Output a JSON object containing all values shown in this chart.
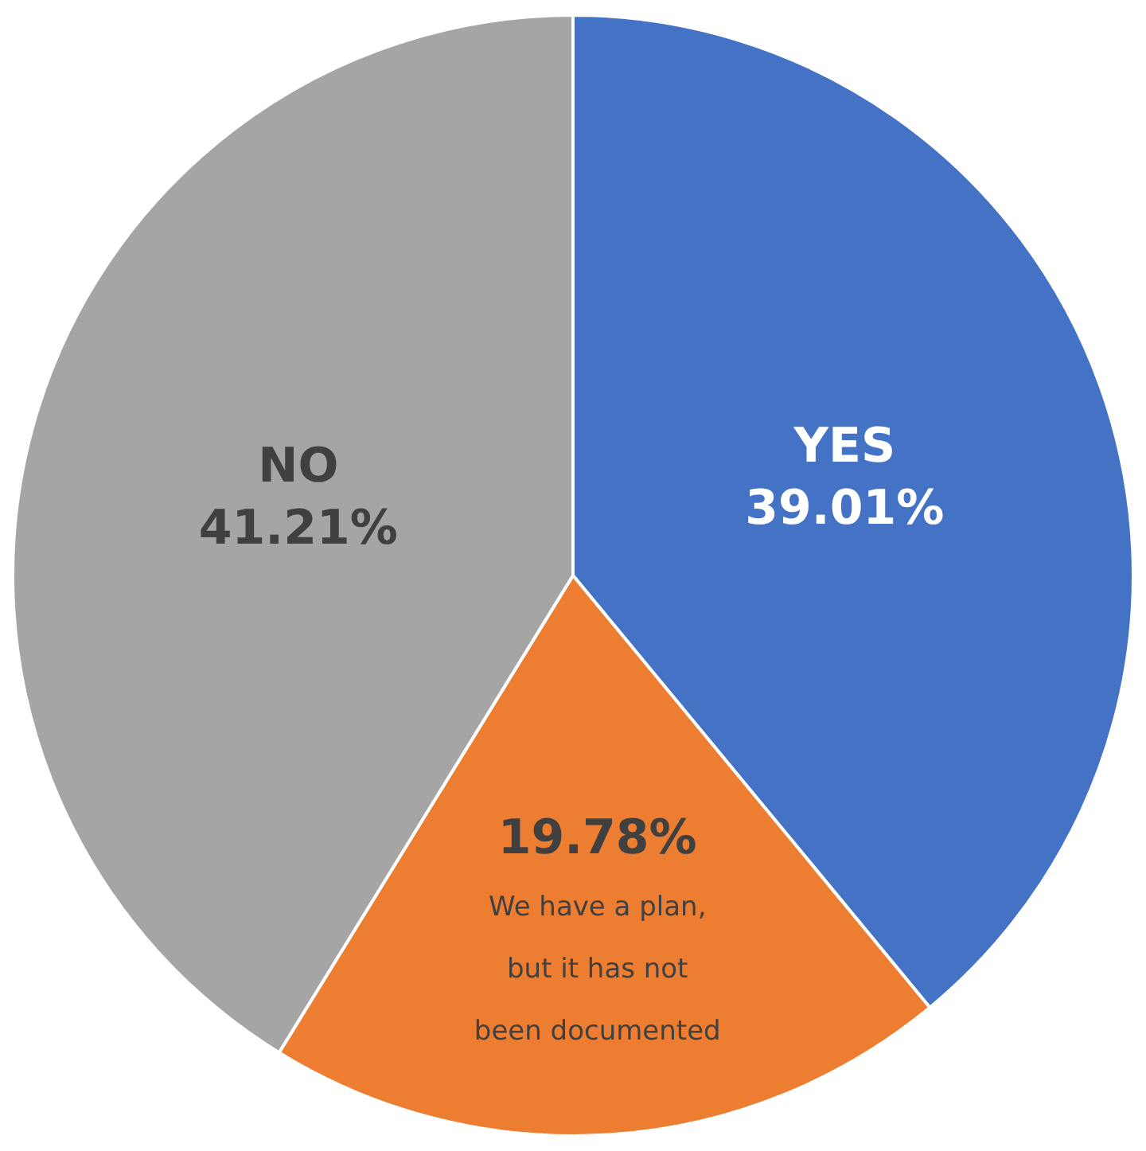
{
  "chart_data": {
    "type": "pie",
    "categories": [
      "YES",
      "We have a plan, but it has not been documented",
      "NO"
    ],
    "values": [
      39.01,
      19.78,
      41.21
    ],
    "colors": [
      "#4472c4",
      "#ed7d31",
      "#a5a5a5"
    ],
    "value_labels": [
      "39.01%",
      "19.78%",
      "41.21%"
    ],
    "legend": false
  }
}
